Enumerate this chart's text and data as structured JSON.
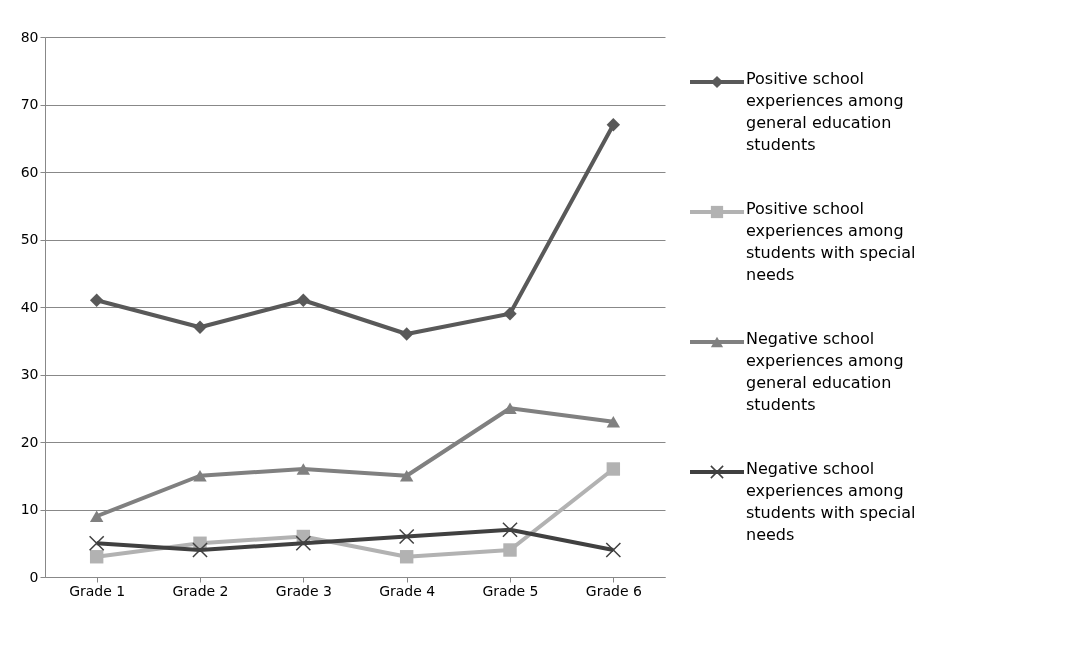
{
  "chart_data": {
    "type": "line",
    "categories": [
      "Grade 1",
      "Grade 2",
      "Grade 3",
      "Grade 4",
      "Grade 5",
      "Grade 6"
    ],
    "series": [
      {
        "name": "Positive school experiences among general education students",
        "color": "#595959",
        "marker": "diamond",
        "values": [
          41,
          37,
          41,
          36,
          39,
          67
        ]
      },
      {
        "name": "Positive school experiences among students with special needs",
        "color": "#b2b2b2",
        "marker": "square",
        "values": [
          3,
          5,
          6,
          3,
          4,
          16
        ]
      },
      {
        "name": "Negative school experiences among general education students",
        "color": "#808080",
        "marker": "triangle",
        "values": [
          9,
          15,
          16,
          15,
          25,
          23
        ]
      },
      {
        "name": "Negative school experiences among students with special needs",
        "color": "#404040",
        "marker": "cross",
        "values": [
          5,
          4,
          5,
          6,
          7,
          4
        ]
      }
    ],
    "ylim": [
      0,
      80
    ],
    "yticks": [
      0,
      10,
      20,
      30,
      40,
      50,
      60,
      70,
      80
    ],
    "grid": "y",
    "legend": "right",
    "line_style": "solid"
  }
}
